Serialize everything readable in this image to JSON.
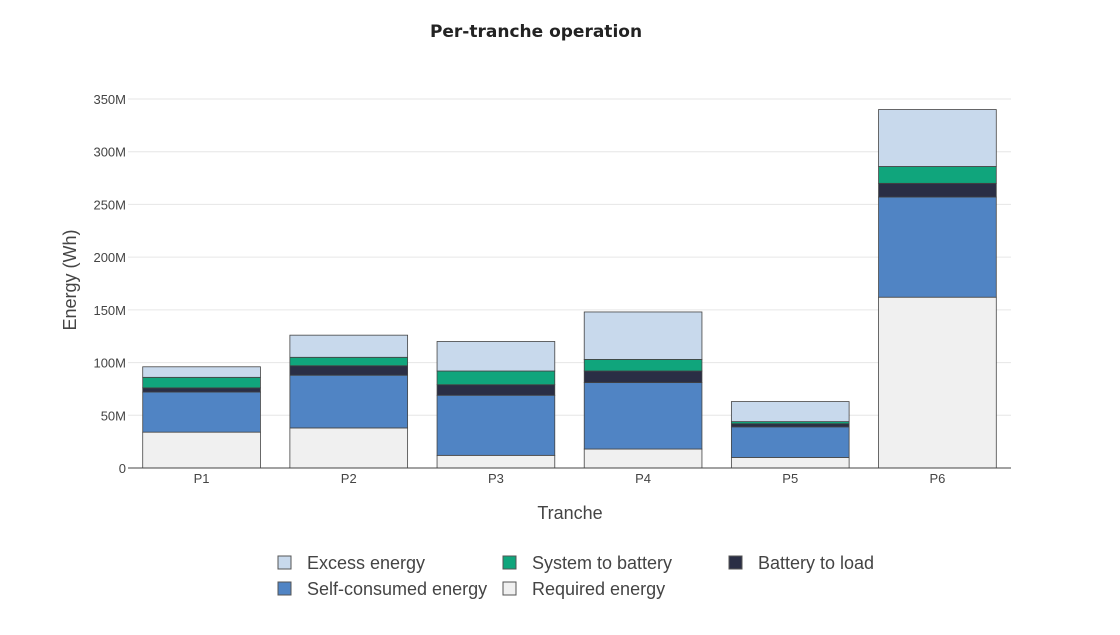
{
  "chart_data": {
    "type": "bar",
    "stacked": true,
    "title": "Per-tranche operation",
    "xlabel": "Tranche",
    "ylabel": "Energy (Wh)",
    "ylim": [
      0,
      350000000
    ],
    "yticks": [
      0,
      50000000,
      100000000,
      150000000,
      200000000,
      250000000,
      300000000,
      350000000
    ],
    "ytick_labels": [
      "0",
      "50M",
      "100M",
      "150M",
      "200M",
      "250M",
      "300M",
      "350M"
    ],
    "categories": [
      "P1",
      "P2",
      "P3",
      "P4",
      "P5",
      "P6"
    ],
    "grid": true,
    "legend_position": "bottom-center",
    "series": [
      {
        "name": "Required energy",
        "color": "#f0f0f0",
        "values": [
          34000000,
          38000000,
          12000000,
          18000000,
          10000000,
          162000000
        ]
      },
      {
        "name": "Self-consumed energy",
        "color": "#5084c4",
        "values": [
          38000000,
          50000000,
          57000000,
          63000000,
          29000000,
          95000000
        ]
      },
      {
        "name": "Battery to load",
        "color": "#2a2e45",
        "values": [
          4000000,
          9000000,
          10000000,
          11000000,
          3000000,
          13000000
        ]
      },
      {
        "name": "System to battery",
        "color": "#10a57c",
        "values": [
          10000000,
          8000000,
          13000000,
          11000000,
          2000000,
          16000000
        ]
      },
      {
        "name": "Excess energy",
        "color": "#c8d9ec",
        "values": [
          10000000,
          21000000,
          28000000,
          45000000,
          19000000,
          54000000
        ]
      }
    ],
    "legend_order": [
      "Excess energy",
      "System to battery",
      "Battery to load",
      "Self-consumed energy",
      "Required energy"
    ]
  }
}
